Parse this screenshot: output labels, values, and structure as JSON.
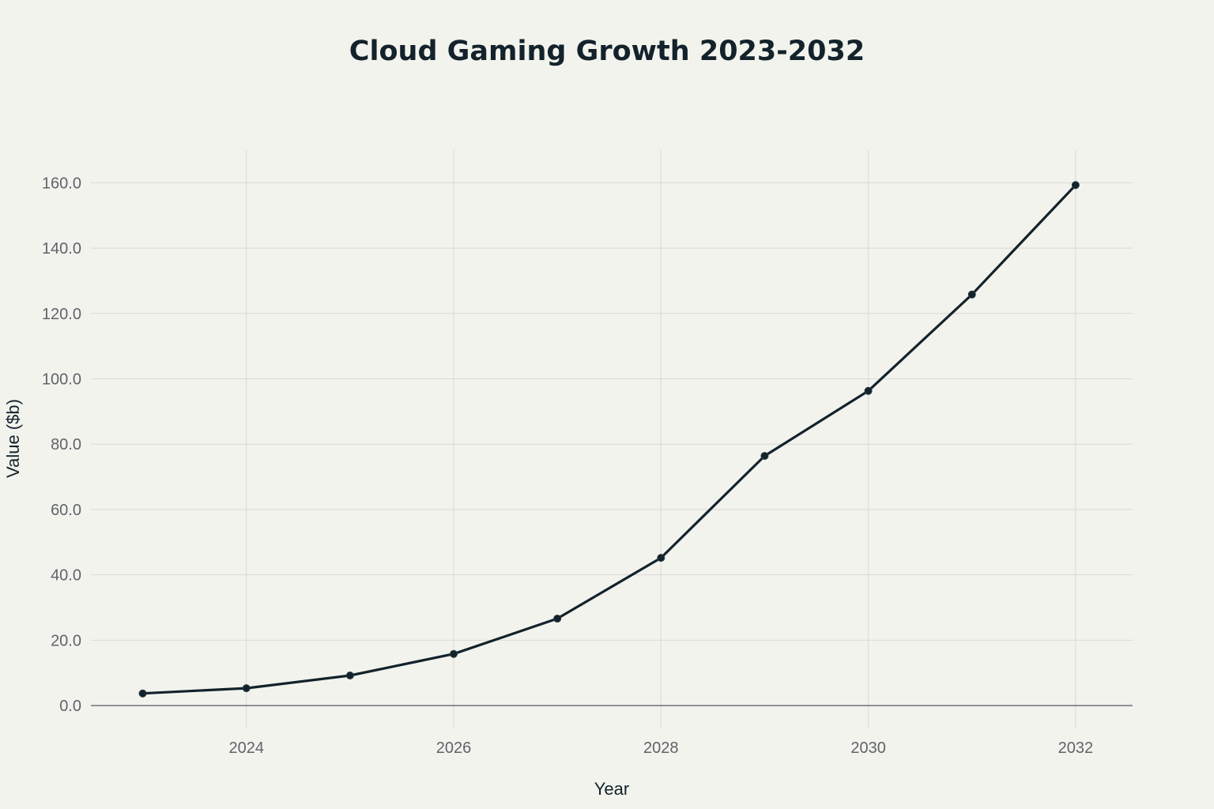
{
  "chart_data": {
    "type": "line",
    "title": "Cloud Gaming Growth 2023-2032",
    "xlabel": "Year",
    "ylabel": "Value ($b)",
    "x": [
      2023,
      2024,
      2025,
      2026,
      2027,
      2028,
      2029,
      2030,
      2031,
      2032
    ],
    "series": [
      {
        "values": [
          3.7,
          5.3,
          9.2,
          15.8,
          26.6,
          45.2,
          76.4,
          96.3,
          125.8,
          159.3
        ]
      }
    ],
    "xlim": [
      2022.5,
      2032.55
    ],
    "ylim": [
      -7,
      170
    ],
    "x_ticks": [
      2024,
      2026,
      2028,
      2030,
      2032
    ],
    "x_tick_labels": [
      "2024",
      "2026",
      "2028",
      "2030",
      "2032"
    ],
    "y_ticks": [
      0,
      20,
      40,
      60,
      80,
      100,
      120,
      140,
      160
    ],
    "y_tick_labels": [
      "0.0",
      "20.0",
      "40.0",
      "60.0",
      "80.0",
      "100.0",
      "120.0",
      "140.0",
      "160.0"
    ],
    "grid": true,
    "legend": "none",
    "line_color": "#13222b",
    "background_color": "#f3f3ee",
    "grid_color": "#d8d9d5"
  }
}
